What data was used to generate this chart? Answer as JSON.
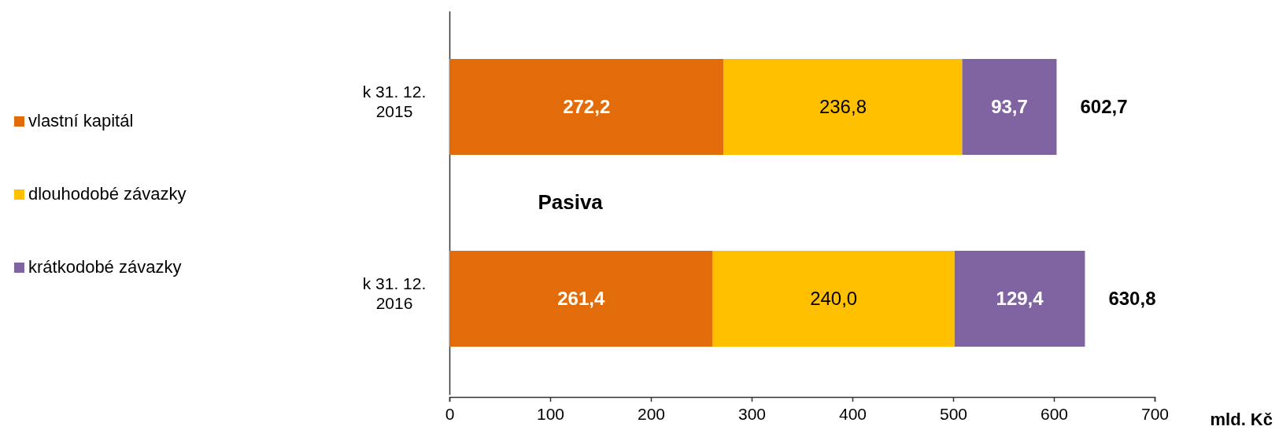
{
  "chart_data": {
    "type": "bar",
    "orientation": "horizontal",
    "stacked": true,
    "categories": [
      "k 31. 12. 2015",
      "k 31. 12. 2016"
    ],
    "series": [
      {
        "name": "vlastní kapitál",
        "color": "#e36c0a",
        "values": [
          272.2,
          261.4
        ],
        "value_labels": [
          "272,2",
          "261,4"
        ]
      },
      {
        "name": "dlouhodobé závazky",
        "color": "#ffc000",
        "values": [
          236.8,
          240.0
        ],
        "value_labels": [
          "236,8",
          "240,0"
        ]
      },
      {
        "name": "krátkodobé závazky",
        "color": "#8064a2",
        "values": [
          93.7,
          129.4
        ],
        "value_labels": [
          "93,7",
          "129,4"
        ]
      }
    ],
    "totals": [
      "602,7",
      "630,8"
    ],
    "xlim": [
      0,
      700
    ],
    "xticks": [
      0,
      100,
      200,
      300,
      400,
      500,
      600,
      700
    ],
    "xlabel": "mld. Kč",
    "annotations": [
      "Pasiva"
    ],
    "legend": "left",
    "grid": false
  }
}
